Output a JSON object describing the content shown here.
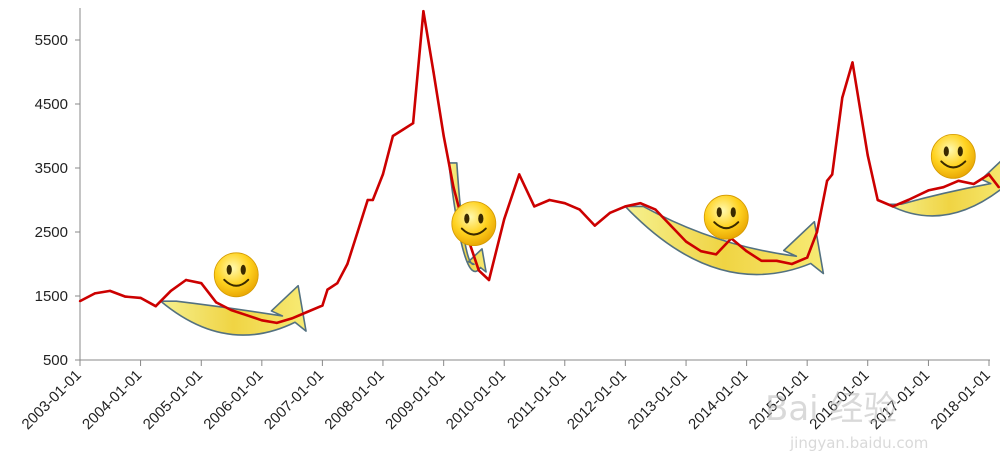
{
  "chart_data": {
    "type": "line",
    "title": "",
    "xlabel": "",
    "ylabel": "",
    "ylim": [
      500,
      6000
    ],
    "yticks": [
      500,
      1500,
      2500,
      3500,
      4500,
      5500
    ],
    "xticks": [
      "2003-01-01",
      "2004-01-01",
      "2005-01-01",
      "2006-01-01",
      "2007-01-01",
      "2008-01-01",
      "2009-01-01",
      "2010-01-01",
      "2011-01-01",
      "2012-01-01",
      "2013-01-01",
      "2014-01-01",
      "2015-01-01",
      "2016-01-01",
      "2017-01-01",
      "2018-01-01"
    ],
    "grid": false,
    "legend": "none",
    "series_color": "#cc0000",
    "x": [
      "2003-01-01",
      "2003-04-01",
      "2003-07-01",
      "2003-10-01",
      "2004-01-01",
      "2004-04-01",
      "2004-07-01",
      "2004-10-01",
      "2005-01-01",
      "2005-04-01",
      "2005-07-01",
      "2005-10-01",
      "2006-01-01",
      "2006-04-01",
      "2006-07-01",
      "2006-10-01",
      "2007-01-01",
      "2007-02-01",
      "2007-04-01",
      "2007-06-01",
      "2007-08-01",
      "2007-10-01",
      "2007-11-01",
      "2008-01-01",
      "2008-03-01",
      "2008-05-01",
      "2008-07-01",
      "2008-09-01",
      "2008-11-01",
      "2009-01-01",
      "2009-03-01",
      "2009-05-01",
      "2009-08-01",
      "2009-10-01",
      "2010-01-01",
      "2010-04-01",
      "2010-07-01",
      "2010-10-01",
      "2011-01-01",
      "2011-04-01",
      "2011-07-01",
      "2011-10-01",
      "2012-01-01",
      "2012-04-01",
      "2012-07-01",
      "2012-10-01",
      "2013-01-01",
      "2013-04-01",
      "2013-07-01",
      "2013-10-01",
      "2014-01-01",
      "2014-04-01",
      "2014-07-01",
      "2014-10-01",
      "2015-01-01",
      "2015-03-01",
      "2015-05-01",
      "2015-06-01",
      "2015-08-01",
      "2015-10-01",
      "2016-01-01",
      "2016-03-01",
      "2016-06-01",
      "2016-09-01",
      "2017-01-01",
      "2017-04-01",
      "2017-07-01",
      "2017-10-01",
      "2018-01-01",
      "2018-03-01"
    ],
    "values": [
      1420,
      1540,
      1580,
      1490,
      1470,
      1340,
      1580,
      1750,
      1700,
      1400,
      1280,
      1200,
      1120,
      1080,
      1150,
      1250,
      1350,
      1600,
      1700,
      2000,
      2500,
      3000,
      3000,
      3400,
      4000,
      4100,
      4200,
      5950,
      5000,
      4000,
      3200,
      2600,
      1900,
      1750,
      2700,
      3400,
      2900,
      3000,
      2950,
      2850,
      2600,
      2800,
      2900,
      2950,
      2850,
      2600,
      2350,
      2200,
      2150,
      2400,
      2200,
      2050,
      2050,
      2000,
      2100,
      2500,
      3300,
      3400,
      4600,
      5150,
      3700,
      3000,
      2900,
      3000,
      3150,
      3200,
      3300,
      3250,
      3400,
      3200
    ],
    "annotations": [
      {
        "type": "u-arrow",
        "from": "2004-05-01",
        "to": "2006-07-01",
        "low": 1050
      },
      {
        "type": "u-arrow",
        "from": "2009-02-01",
        "to": "2009-08-01",
        "low": 1850
      },
      {
        "type": "u-arrow",
        "from": "2012-01-01",
        "to": "2015-01-01",
        "low": 1950
      },
      {
        "type": "u-arrow",
        "from": "2016-05-01",
        "to": "2018-03-01",
        "low": 2900
      }
    ]
  },
  "watermark": {
    "text": "Bai 经验",
    "sub": "jingyan.baidu.com"
  }
}
